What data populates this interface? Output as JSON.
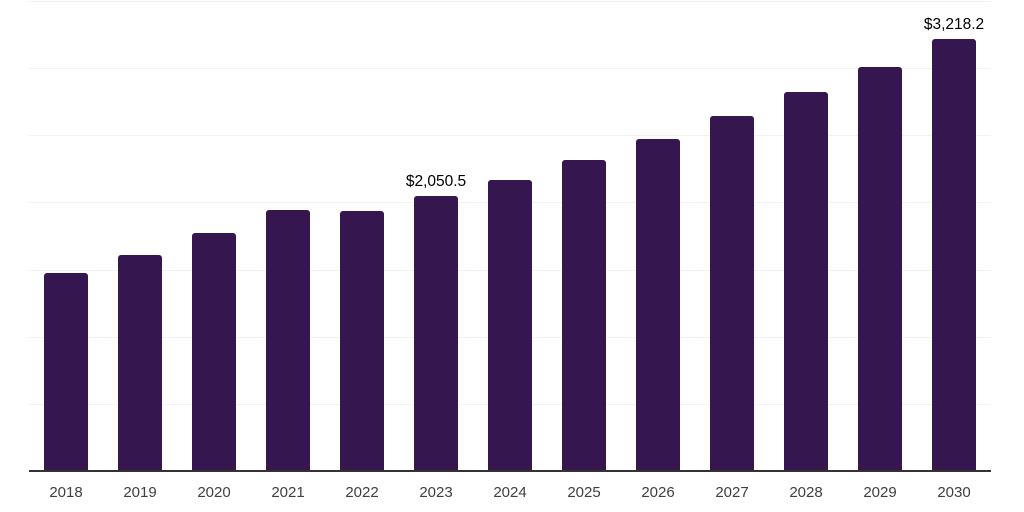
{
  "chart_data": {
    "type": "bar",
    "title": "",
    "xlabel": "",
    "ylabel": "",
    "categories": [
      "2018",
      "2019",
      "2020",
      "2021",
      "2022",
      "2023",
      "2024",
      "2025",
      "2026",
      "2027",
      "2028",
      "2029",
      "2030"
    ],
    "values": [
      1475,
      1608,
      1775,
      1945,
      1938,
      2050.5,
      2170,
      2316,
      2472,
      2646,
      2820,
      3005,
      3218.2
    ],
    "data_labels": [
      {
        "category": "2023",
        "text": "$2,050.5"
      },
      {
        "category": "2030",
        "text": "$3,218.2"
      }
    ],
    "ylim": [
      0,
      3500
    ],
    "gridline_step": 500,
    "grid": "horizontal",
    "legend": "none",
    "y_axis_labels_visible": false,
    "colors": {
      "bar": "#35164e",
      "gridline": "#f2f2f2",
      "axis_line": "#333333",
      "tick_label": "#404040",
      "data_label": "#000000",
      "background": "#ffffff"
    }
  }
}
